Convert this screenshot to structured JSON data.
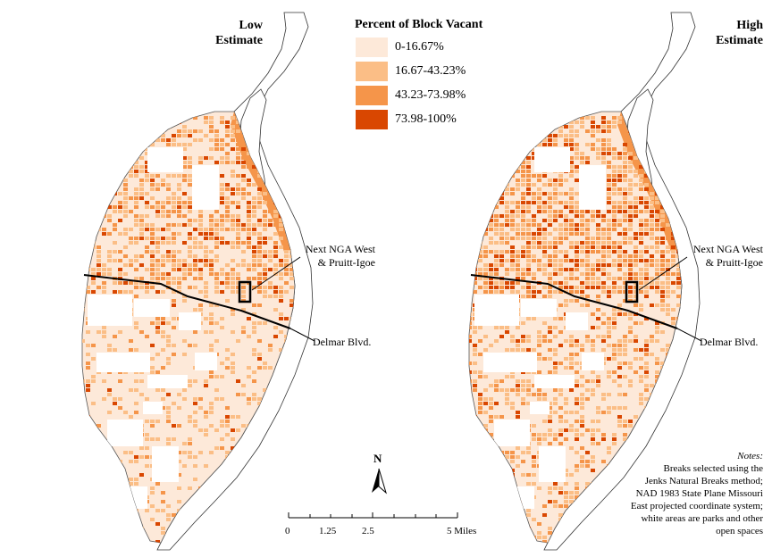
{
  "maps": {
    "left_title": "Low Estimate",
    "left_title_line1": "Low",
    "left_title_line2": "Estimate",
    "right_title_line1": "High",
    "right_title_line2": "Estimate"
  },
  "legend": {
    "title": "Percent of Block Vacant",
    "classes": [
      {
        "label": "0-16.67%",
        "color": "#fde9d9"
      },
      {
        "label": "16.67-43.23%",
        "color": "#fbbe86"
      },
      {
        "label": "43.23-73.98%",
        "color": "#f5954a"
      },
      {
        "label": "73.98-100%",
        "color": "#d94701"
      }
    ]
  },
  "annotations": {
    "next_nga_line1": "Next NGA West",
    "next_nga_line2": "& Pruitt-Igoe",
    "delmar": "Delmar Blvd."
  },
  "north_arrow": {
    "label": "N"
  },
  "scale_bar": {
    "ticks": [
      "0",
      "1.25",
      "2.5",
      "5 Miles"
    ]
  },
  "notes": {
    "heading": "Notes:",
    "lines": [
      "Breaks selected using the",
      "Jenks Natural Breaks method;",
      "NAD 1983 State Plane Missouri",
      "East projected coordinate system;",
      "white areas are parks and other",
      "open spaces"
    ]
  }
}
